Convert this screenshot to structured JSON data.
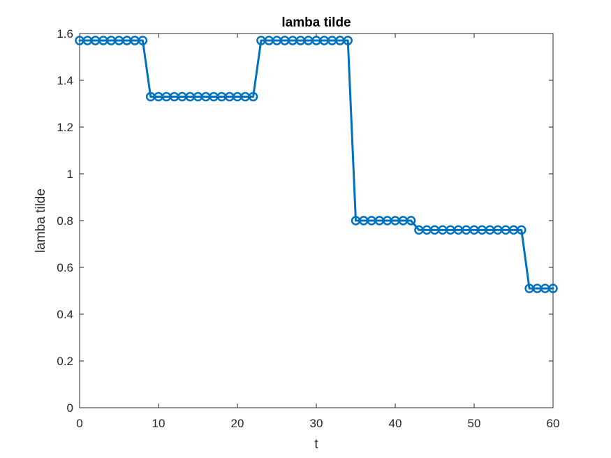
{
  "chart_data": {
    "type": "line",
    "title": "lamba tilde",
    "xlabel": "t",
    "ylabel": "lamba tilde",
    "xlim": [
      0,
      60
    ],
    "ylim": [
      0,
      1.6
    ],
    "xticks": [
      0,
      10,
      20,
      30,
      40,
      50,
      60
    ],
    "yticks": [
      0,
      0.2,
      0.4,
      0.6,
      0.8,
      1,
      1.2,
      1.4,
      1.6
    ],
    "xtick_labels": [
      "0",
      "10",
      "20",
      "30",
      "40",
      "50",
      "60"
    ],
    "ytick_labels": [
      "0",
      "0.2",
      "0.4",
      "0.6",
      "0.8",
      "1",
      "1.2",
      "1.4",
      "1.6"
    ],
    "grid": true,
    "marker": "circle",
    "series": [
      {
        "color": "#0072BD",
        "x": [
          0,
          1,
          2,
          3,
          4,
          5,
          6,
          7,
          8,
          9,
          10,
          11,
          12,
          13,
          14,
          15,
          16,
          17,
          18,
          19,
          20,
          21,
          22,
          23,
          24,
          25,
          26,
          27,
          28,
          29,
          30,
          31,
          32,
          33,
          34,
          35,
          36,
          37,
          38,
          39,
          40,
          41,
          42,
          43,
          44,
          45,
          46,
          47,
          48,
          49,
          50,
          51,
          52,
          53,
          54,
          55,
          56,
          57,
          58,
          59,
          60
        ],
        "y": [
          1.57,
          1.57,
          1.57,
          1.57,
          1.57,
          1.57,
          1.57,
          1.57,
          1.57,
          1.33,
          1.33,
          1.33,
          1.33,
          1.33,
          1.33,
          1.33,
          1.33,
          1.33,
          1.33,
          1.33,
          1.33,
          1.33,
          1.33,
          1.57,
          1.57,
          1.57,
          1.57,
          1.57,
          1.57,
          1.57,
          1.57,
          1.57,
          1.57,
          1.57,
          1.57,
          0.8,
          0.8,
          0.8,
          0.8,
          0.8,
          0.8,
          0.8,
          0.8,
          0.76,
          0.76,
          0.76,
          0.76,
          0.76,
          0.76,
          0.76,
          0.76,
          0.76,
          0.76,
          0.76,
          0.76,
          0.76,
          0.76,
          0.51,
          0.51,
          0.51,
          0.51
        ]
      }
    ]
  }
}
